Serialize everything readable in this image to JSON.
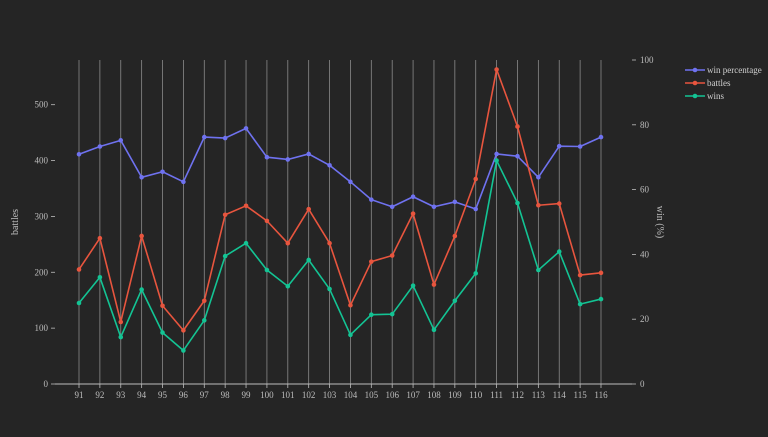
{
  "chart_data": {
    "type": "line",
    "title": "",
    "xlabel": "",
    "ylabel": "battles",
    "y2label": "win (%)",
    "x": [
      91,
      92,
      93,
      94,
      95,
      96,
      97,
      98,
      99,
      100,
      101,
      102,
      103,
      104,
      105,
      106,
      107,
      108,
      109,
      110,
      111,
      112,
      113,
      114,
      115,
      116
    ],
    "ylim": [
      0,
      580
    ],
    "y2lim": [
      0,
      100
    ],
    "yticks": [
      0,
      100,
      200,
      300,
      400,
      500
    ],
    "y2ticks": [
      0,
      20,
      40,
      60,
      80,
      100
    ],
    "grid": "vertical",
    "legend_position": "top-right",
    "series": [
      {
        "name": "win percentage",
        "axis": "right",
        "color": "#6f72f0",
        "values": [
          70.9,
          73.3,
          75.2,
          63.8,
          65.5,
          62.4,
          76.2,
          75.9,
          78.9,
          70.0,
          69.3,
          71.0,
          67.5,
          62.4,
          56.9,
          54.7,
          57.8,
          54.7,
          56.2,
          54.0,
          71.0,
          70.3,
          63.8,
          73.4,
          73.3,
          76.2
        ]
      },
      {
        "name": "battles",
        "axis": "left",
        "color": "#e8553e",
        "values": [
          205,
          261,
          111,
          265,
          140,
          96,
          149,
          303,
          319,
          292,
          252,
          313,
          252,
          141,
          219,
          230,
          305,
          178,
          265,
          367,
          563,
          461,
          320,
          323,
          195,
          199
        ]
      },
      {
        "name": "wins",
        "axis": "left",
        "color": "#13c494",
        "values": [
          145,
          191,
          84,
          169,
          92,
          60,
          114,
          229,
          252,
          204,
          175,
          222,
          170,
          88,
          124,
          125,
          176,
          97,
          149,
          198,
          400,
          324,
          204,
          237,
          143,
          152
        ]
      }
    ]
  }
}
